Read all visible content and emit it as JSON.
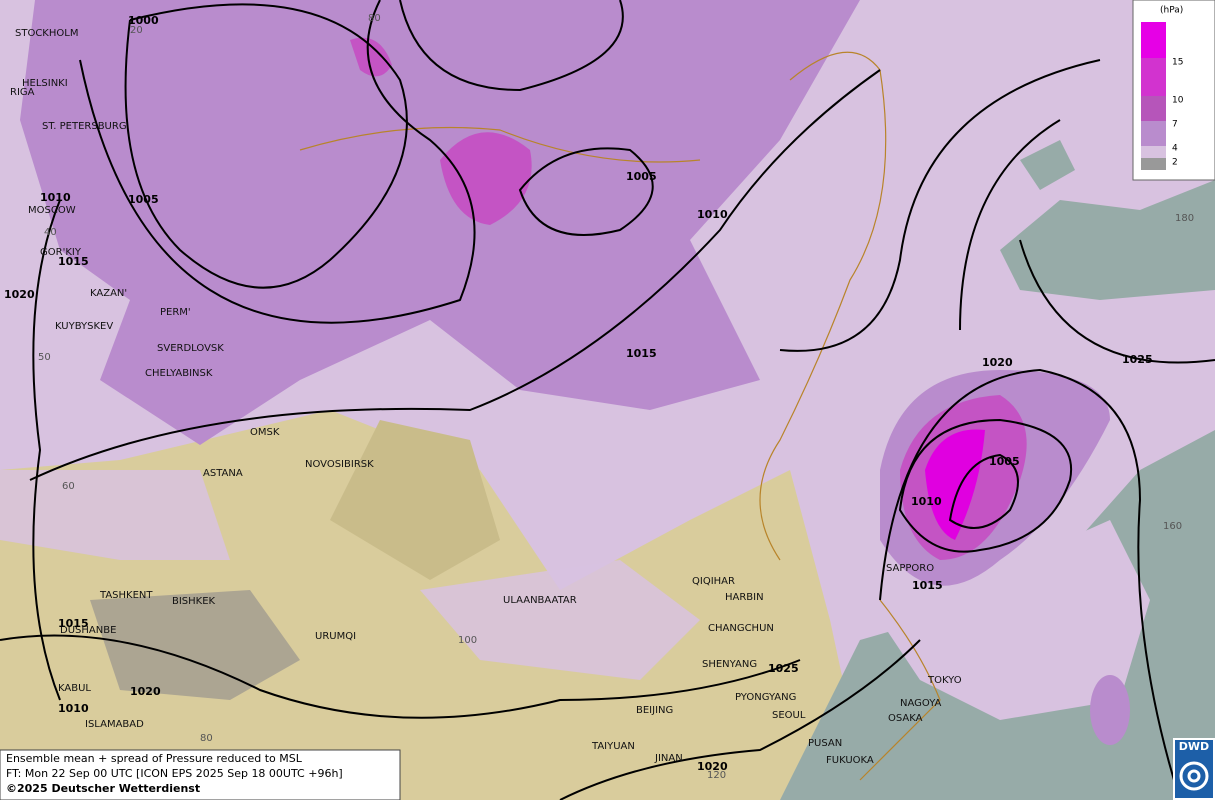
{
  "map": {
    "cities": [
      "STOCKHOLM",
      "HELSINKI",
      "RIGA",
      "ST. PETERSBURG",
      "MOSCOW",
      "GOR'KIY",
      "KAZAN'",
      "KUYBYSKEV",
      "PERM'",
      "SVERDLOVSK",
      "CHELYABINSK",
      "OMSK",
      "ASTANA",
      "NOVOSIBIRSK",
      "TASHKENT",
      "BISHKEK",
      "DUSHANBE",
      "URUMQI",
      "KABUL",
      "ISLAMABAD",
      "ULAANBAATAR",
      "QIQIHAR",
      "HARBIN",
      "CHANGCHUN",
      "SHENYANG",
      "PYONGYANG",
      "SEOUL",
      "BEIJING",
      "TAIYUAN",
      "JINAN",
      "PUSAN",
      "FUKUOKA",
      "NAGOYA",
      "OSAKA",
      "TOKYO",
      "SAPPORO"
    ],
    "isobar_labels": [
      "1000",
      "1005",
      "1010",
      "1015",
      "1020",
      "1005",
      "1010",
      "1015",
      "1020",
      "1025",
      "1005",
      "1010",
      "1015",
      "1025",
      "1020",
      "1015",
      "1010",
      "1020"
    ],
    "grid_labels": [
      "20",
      "80",
      "40",
      "50",
      "60",
      "100",
      "80",
      "120",
      "180",
      "160"
    ]
  },
  "legend": {
    "unit": "(hPa)",
    "levels": [
      "15",
      "10",
      "7",
      "4",
      "2"
    ]
  },
  "footer": {
    "lines": [
      "Ensemble mean + spread of Pressure reduced to MSL",
      "FT: Mon 22 Sep 00 UTC [ICON EPS 2025 Sep 18 00UTC +96h]",
      "©2025 Deutscher Wetterdienst"
    ]
  },
  "logo": "DWD"
}
